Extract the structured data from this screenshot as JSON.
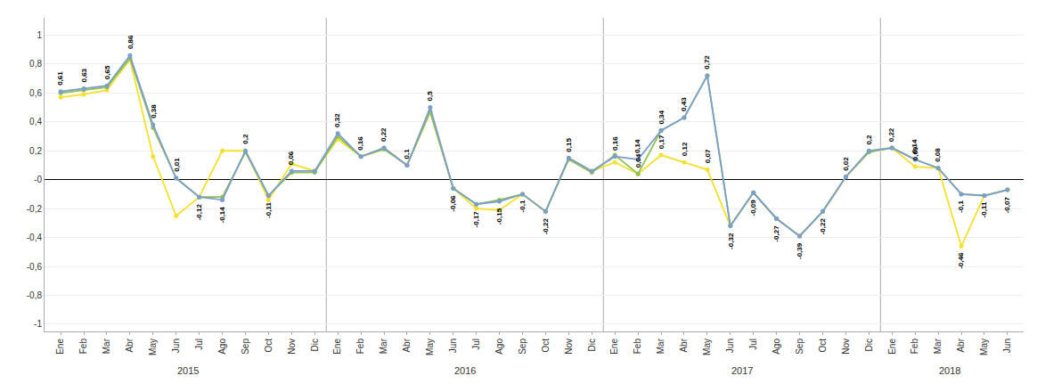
{
  "chart_data": {
    "type": "line",
    "categories": [
      "Ene",
      "Feb",
      "Mar",
      "Abr",
      "May",
      "Jun",
      "Jul",
      "Ago",
      "Sep",
      "Oct",
      "Nov",
      "Dic",
      "Ene",
      "Feb",
      "Mar",
      "Abr",
      "May",
      "Jun",
      "Jul",
      "Ago",
      "Sep",
      "Oct",
      "Nov",
      "Dic",
      "Ene",
      "Feb",
      "Mar",
      "Abr",
      "May",
      "Jun",
      "Jul",
      "Ago",
      "Sep",
      "Oct",
      "Nov",
      "Dic",
      "Ene",
      "Feb",
      "Mar",
      "Abr",
      "May",
      "Jun"
    ],
    "groups": [
      {
        "label": "2015",
        "start": 0,
        "end": 11
      },
      {
        "label": "2016",
        "start": 12,
        "end": 23
      },
      {
        "label": "2017",
        "start": 24,
        "end": 35
      },
      {
        "label": "2018",
        "start": 36,
        "end": 41
      }
    ],
    "series": [
      {
        "color": "#7B9FCC",
        "values": [
          0.61,
          0.63,
          0.65,
          0.86,
          0.38,
          0.01,
          -0.12,
          -0.14,
          0.2,
          -0.11,
          0.06,
          0.06,
          0.32,
          0.16,
          0.22,
          0.1,
          0.5,
          -0.06,
          -0.17,
          -0.15,
          -0.1,
          -0.22,
          0.15,
          0.06,
          0.16,
          0.14,
          0.34,
          0.43,
          0.72,
          -0.32,
          -0.09,
          -0.27,
          -0.39,
          -0.22,
          0.02,
          0.2,
          0.22,
          0.14,
          0.08,
          -0.1,
          -0.11,
          -0.07
        ],
        "value_labels": [
          "0,61",
          "0,63",
          "0,65",
          "0,86",
          "0,38",
          "0,01",
          "-0,12",
          "-0,14",
          "0,2",
          "-0,11",
          "0,06",
          null,
          "0,32",
          "0,16",
          "0,22",
          "0,1",
          "0,5",
          "-0,06",
          "-0,17",
          "-0,15",
          "-0,1",
          "-0,22",
          "0,15",
          null,
          "0,16",
          "0,14",
          "0,34",
          "0,43",
          "0,72",
          "-0,32",
          "-0,09",
          "-0,27",
          "-0,39",
          "-0,22",
          "0,02",
          "0,2",
          "0,22",
          "0,14",
          "0,08",
          "-0,1",
          "-0,11",
          "-0,07"
        ]
      },
      {
        "color": "#92C050",
        "values": [
          0.6,
          0.62,
          0.64,
          0.84,
          0.36,
          0.01,
          -0.12,
          -0.12,
          0.19,
          -0.11,
          0.05,
          0.05,
          0.3,
          0.16,
          0.21,
          0.1,
          0.47,
          -0.06,
          -0.17,
          -0.14,
          -0.1,
          -0.22,
          0.14,
          0.05,
          0.17,
          0.04,
          0.34,
          0.43,
          0.72,
          -0.32,
          -0.09,
          -0.27,
          -0.39,
          -0.22,
          0.02,
          0.19,
          0.22,
          0.14,
          0.08,
          -0.1,
          -0.11,
          -0.07
        ]
      },
      {
        "color": "#F5E12D",
        "values": [
          0.57,
          0.59,
          0.62,
          0.83,
          0.16,
          -0.25,
          -0.12,
          0.2,
          0.2,
          -0.14,
          0.11,
          0.06,
          0.28,
          0.16,
          0.22,
          0.1,
          0.47,
          -0.06,
          -0.2,
          -0.21,
          -0.1,
          -0.22,
          0.15,
          0.06,
          0.12,
          0.04,
          0.17,
          0.12,
          0.07,
          -0.32,
          -0.09,
          -0.27,
          -0.39,
          -0.22,
          0.02,
          0.2,
          0.22,
          0.09,
          0.08,
          -0.46,
          -0.11,
          -0.07
        ],
        "value_labels": [
          null,
          null,
          null,
          null,
          null,
          null,
          null,
          null,
          null,
          null,
          null,
          null,
          null,
          null,
          null,
          null,
          null,
          null,
          null,
          null,
          null,
          null,
          null,
          null,
          null,
          "0,04",
          "0,17",
          "0,12",
          "0,07",
          null,
          null,
          null,
          null,
          null,
          null,
          null,
          null,
          "0,09",
          null,
          "-0,46",
          null,
          null
        ]
      }
    ],
    "ylim": [
      -1.05,
      1.12
    ],
    "yticks": [
      -1,
      {
        "value": -0.8,
        "label": "-0,8"
      },
      {
        "value": -0.6,
        "label": "-0,6"
      },
      {
        "value": -0.4,
        "label": "-0,4"
      },
      {
        "value": -0.2,
        "label": "-0,2"
      },
      {
        "value": 0,
        "label": "-0"
      },
      {
        "value": 0.2,
        "label": "0,2"
      },
      {
        "value": 0.4,
        "label": "0,4"
      },
      {
        "value": 0.6,
        "label": "0,6"
      },
      {
        "value": 0.8,
        "label": "0,8"
      },
      1
    ],
    "grid": true,
    "data_labels": true,
    "marker": "circle",
    "line_style": "solid"
  }
}
